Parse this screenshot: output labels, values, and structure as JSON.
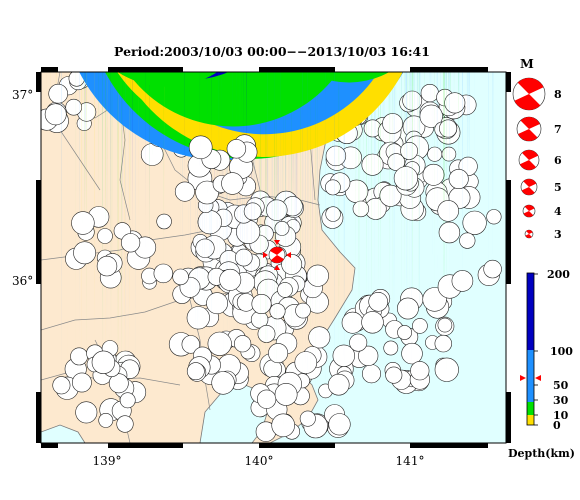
{
  "title": "Period:2003/10/03 00:00−−2013/10/03 16:41",
  "map": {
    "lat_labels": [
      "37°",
      "36°"
    ],
    "lon_labels": [
      "139°",
      "140°",
      "141°"
    ],
    "land_color": "#fde9cf",
    "sea_color": "#e0ffff"
  },
  "magnitude_legend": {
    "title": "M",
    "magnitudes": [
      8,
      7,
      6,
      5,
      4,
      3
    ],
    "labels": [
      "8",
      "7",
      "6",
      "5",
      "4",
      "3"
    ],
    "color": "#ff0000"
  },
  "depth_scale": {
    "title": "Depth(km)",
    "ticks": [
      0,
      10,
      30,
      50,
      100,
      200
    ],
    "tick_labels": [
      "0",
      "10",
      "30",
      "50",
      "100",
      "200"
    ],
    "marker_depth": 60,
    "colors": {
      "shallow_0_10": "#ffdf00",
      "10_30": "#00e000",
      "30_100": "#1e90ff",
      "100_200": "#0000c0",
      "marker": "#ff0000"
    }
  },
  "highlighted_event": {
    "lon": 140.12,
    "lat": 36.13,
    "color": "#ff0000"
  }
}
